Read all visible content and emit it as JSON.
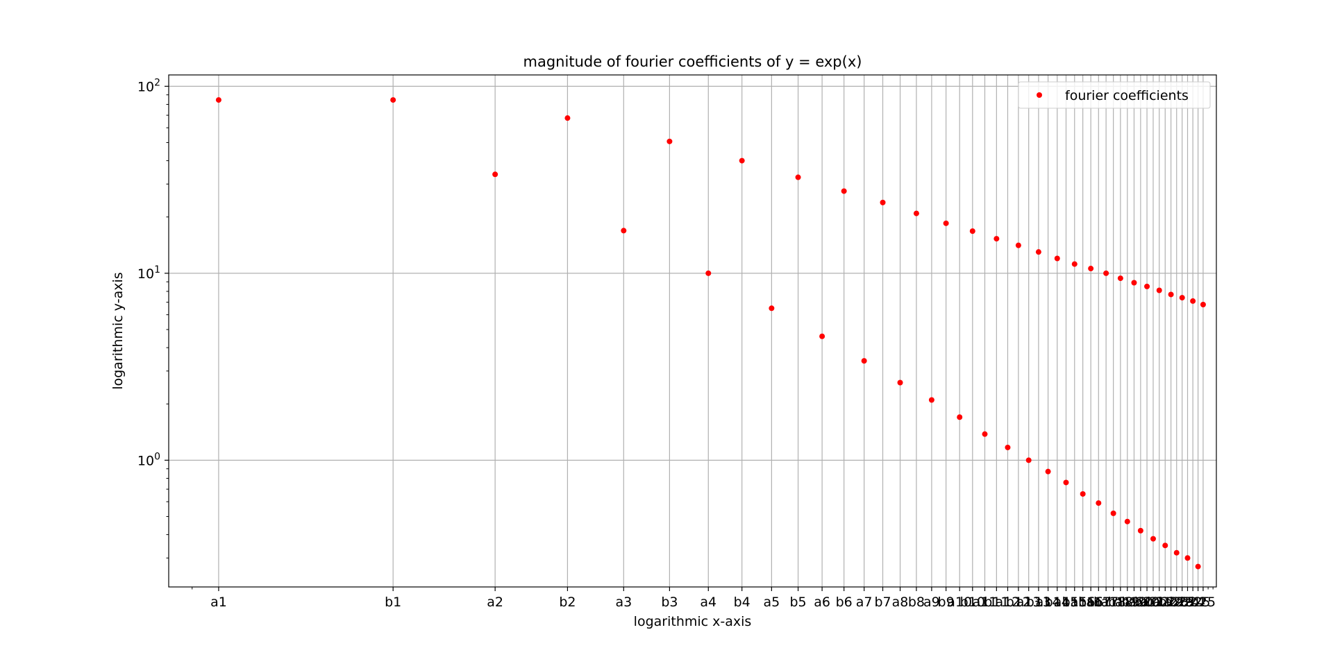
{
  "colors": {
    "marker": "#ff0000",
    "grid": "#b0b0b0",
    "axes": "#000000",
    "legend_border": "#cccccc"
  },
  "chart_data": {
    "type": "scatter",
    "title": "magnitude of fourier coefficients of y = exp(x)",
    "xlabel": "logarithmic x-axis",
    "ylabel": "logarithmic y-axis",
    "xscale": "log",
    "yscale": "log",
    "grid": true,
    "legend_position": "top-right",
    "ylim": [
      0.21,
      115
    ],
    "xlim": [
      0.82,
      52.7
    ],
    "y_ticks": [
      {
        "value": 1,
        "base": "10",
        "exp": "0"
      },
      {
        "value": 10,
        "base": "10",
        "exp": "1"
      },
      {
        "value": 100,
        "base": "10",
        "exp": "2"
      }
    ],
    "x_ticks": [
      {
        "label": "a1",
        "x": 1
      },
      {
        "label": "b1",
        "x": 2
      },
      {
        "label": "a2",
        "x": 3
      },
      {
        "label": "b2",
        "x": 4
      },
      {
        "label": "a3",
        "x": 5
      },
      {
        "label": "b3",
        "x": 6
      },
      {
        "label": "a4",
        "x": 7
      },
      {
        "label": "b4",
        "x": 8
      },
      {
        "label": "a5",
        "x": 9
      },
      {
        "label": "b5",
        "x": 10
      },
      {
        "label": "a6",
        "x": 11
      },
      {
        "label": "b6",
        "x": 12
      },
      {
        "label": "a7",
        "x": 13
      },
      {
        "label": "b7",
        "x": 14
      },
      {
        "label": "a8",
        "x": 15
      },
      {
        "label": "b8",
        "x": 16
      },
      {
        "label": "a9",
        "x": 17
      },
      {
        "label": "b9",
        "x": 18
      },
      {
        "label": "a10",
        "x": 19
      },
      {
        "label": "b10",
        "x": 20
      },
      {
        "label": "a11",
        "x": 21
      },
      {
        "label": "b11",
        "x": 22
      },
      {
        "label": "a12",
        "x": 23
      },
      {
        "label": "b12",
        "x": 24
      },
      {
        "label": "a13",
        "x": 25
      },
      {
        "label": "b13",
        "x": 26
      },
      {
        "label": "a14",
        "x": 27
      },
      {
        "label": "b14",
        "x": 28
      },
      {
        "label": "a15",
        "x": 29
      },
      {
        "label": "b15",
        "x": 30
      },
      {
        "label": "a16",
        "x": 31
      },
      {
        "label": "b16",
        "x": 32
      },
      {
        "label": "a17",
        "x": 33
      },
      {
        "label": "b17",
        "x": 34
      },
      {
        "label": "a18",
        "x": 35
      },
      {
        "label": "b18",
        "x": 36
      },
      {
        "label": "a19",
        "x": 37
      },
      {
        "label": "b19",
        "x": 38
      },
      {
        "label": "a20",
        "x": 39
      },
      {
        "label": "b20",
        "x": 40
      },
      {
        "label": "a21",
        "x": 41
      },
      {
        "label": "b21",
        "x": 42
      },
      {
        "label": "a22",
        "x": 43
      },
      {
        "label": "b22",
        "x": 44
      },
      {
        "label": "a23",
        "x": 45
      },
      {
        "label": "b23",
        "x": 46
      },
      {
        "label": "a24",
        "x": 47
      },
      {
        "label": "b24",
        "x": 48
      },
      {
        "label": "a25",
        "x": 49
      },
      {
        "label": "b25",
        "x": 50
      }
    ],
    "series": [
      {
        "name": "fourier coefficients",
        "marker": "circle",
        "x": [
          1,
          2,
          3,
          4,
          5,
          6,
          7,
          8,
          9,
          10,
          11,
          12,
          13,
          14,
          15,
          16,
          17,
          18,
          19,
          20,
          21,
          22,
          23,
          24,
          25,
          26,
          27,
          28,
          29,
          30,
          31,
          32,
          33,
          34,
          35,
          36,
          37,
          38,
          39,
          40,
          41,
          42,
          43,
          44,
          45,
          46,
          47,
          48,
          49,
          50
        ],
        "y": [
          84.5,
          84.5,
          33.8,
          67.6,
          16.9,
          50.7,
          10.0,
          40.0,
          6.5,
          32.6,
          4.6,
          27.5,
          3.4,
          23.9,
          2.6,
          20.9,
          2.1,
          18.5,
          1.7,
          16.8,
          1.38,
          15.3,
          1.17,
          14.1,
          1.0,
          13.0,
          0.87,
          12.0,
          0.76,
          11.2,
          0.66,
          10.6,
          0.59,
          10.0,
          0.52,
          9.4,
          0.47,
          8.9,
          0.42,
          8.5,
          0.38,
          8.1,
          0.35,
          7.7,
          0.32,
          7.4,
          0.3,
          7.1,
          0.27,
          6.8
        ]
      }
    ]
  }
}
